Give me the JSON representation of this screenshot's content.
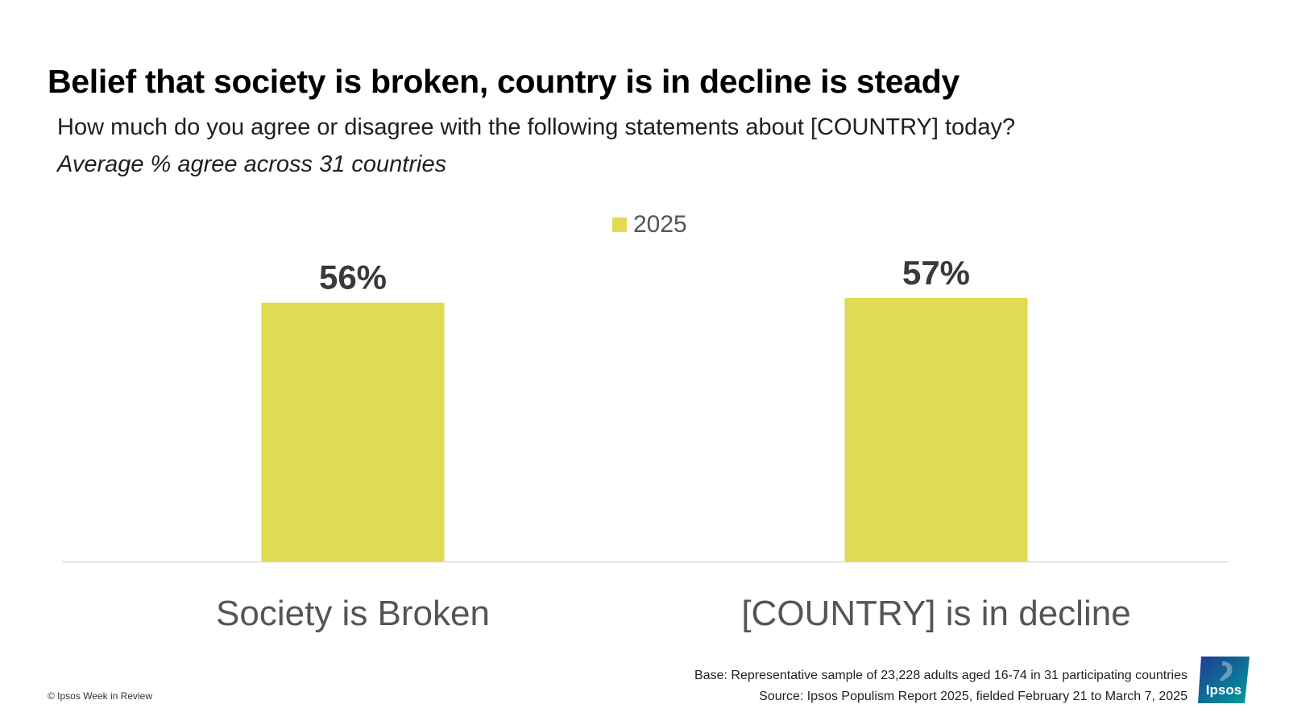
{
  "header": {
    "title": "Belief that society is broken, country is in decline is steady",
    "subtitle": "How much do you agree or disagree with the following statements about [COUNTRY] today?",
    "note": "Average % agree across 31 countries"
  },
  "legend": {
    "label": "2025",
    "color": "#e1da53"
  },
  "chart_data": {
    "type": "bar",
    "categories": [
      "Society is Broken",
      "[COUNTRY] is in decline"
    ],
    "series": [
      {
        "name": "2025",
        "values": [
          56,
          57
        ],
        "color": "#e1da53"
      }
    ],
    "value_labels": [
      "56%",
      "57%"
    ],
    "ylim": [
      0,
      57
    ],
    "grid": false,
    "legend_position": "top-center"
  },
  "footer": {
    "copyright": "© Ipsos Week in Review",
    "base": "Base: Representative sample of 23,228 adults aged 16-74 in 31 participating countries",
    "source": "Source: Ipsos Populism Report 2025, fielded February 21 to March 7, 2025"
  },
  "logo": {
    "text": "Ipsos",
    "colors": [
      "#1f3a93",
      "#009d9a"
    ]
  }
}
